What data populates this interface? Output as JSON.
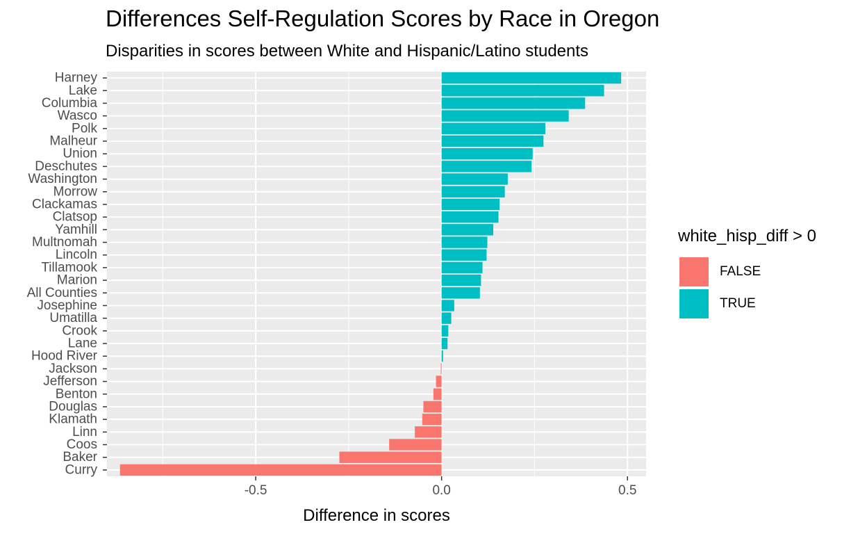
{
  "chart_data": {
    "type": "bar",
    "orientation": "horizontal",
    "title": "Differences Self-Regulation Scores by Race in Oregon",
    "subtitle": "Disparities in scores between White and Hispanic/Latino students",
    "xlabel": "Difference in scores",
    "ylabel": "",
    "xlim": [
      -0.9,
      0.55
    ],
    "xticks": [
      -0.5,
      0.0,
      0.5
    ],
    "xtick_labels": [
      "-0.5",
      "0.0",
      "0.5"
    ],
    "grid": true,
    "categories": [
      "Harney",
      "Lake",
      "Columbia",
      "Wasco",
      "Polk",
      "Malheur",
      "Union",
      "Deschutes",
      "Washington",
      "Morrow",
      "Clackamas",
      "Clatsop",
      "Yamhill",
      "Multnomah",
      "Lincoln",
      "Tillamook",
      "Marion",
      "All Counties",
      "Josephine",
      "Umatilla",
      "Crook",
      "Lane",
      "Hood River",
      "Jackson",
      "Jefferson",
      "Benton",
      "Douglas",
      "Klamath",
      "Linn",
      "Coos",
      "Baker",
      "Curry"
    ],
    "values": [
      0.483,
      0.437,
      0.386,
      0.342,
      0.279,
      0.274,
      0.245,
      0.242,
      0.178,
      0.17,
      0.156,
      0.153,
      0.139,
      0.123,
      0.121,
      0.11,
      0.106,
      0.103,
      0.034,
      0.026,
      0.018,
      0.016,
      0.004,
      -0.002,
      -0.015,
      -0.022,
      -0.049,
      -0.052,
      -0.072,
      -0.141,
      -0.275,
      -0.865
    ],
    "legend": {
      "title": "white_hisp_diff > 0",
      "placement": "right",
      "entries": [
        {
          "label": "FALSE",
          "color": "#F8766D"
        },
        {
          "label": "TRUE",
          "color": "#00BFC4"
        }
      ]
    },
    "colors": {
      "panel_background": "#EBEBEB",
      "grid": "#FFFFFF",
      "axis_text": "#4D4D4D",
      "tick": "#333333",
      "false_color": "#F8766D",
      "true_color": "#00BFC4"
    }
  }
}
